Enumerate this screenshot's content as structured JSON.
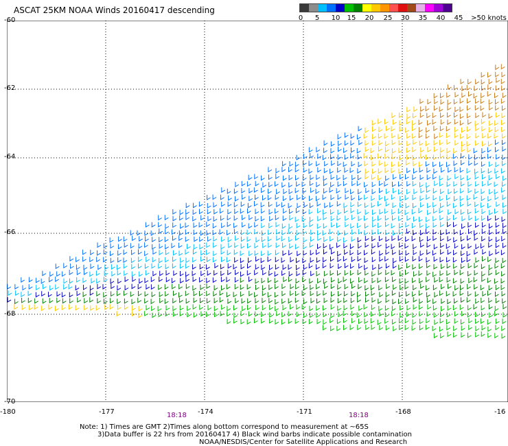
{
  "title": "ASCAT 25KM NOAA Winds 20160417 descending",
  "colorbar": {
    "colors": [
      "#3a3a3a",
      "#8c8c8c",
      "#00bfff",
      "#0070ff",
      "#0000c8",
      "#00c000",
      "#008000",
      "#ffff00",
      "#ffc800",
      "#ff9600",
      "#ff5050",
      "#e01010",
      "#a04a1a",
      "#e8b0e8",
      "#ff00ff",
      "#a000d8",
      "#500090"
    ],
    "labels": [
      "0",
      "5",
      "10",
      "15",
      "20",
      "25",
      "30",
      "35",
      "40",
      "45",
      ">50 knots"
    ]
  },
  "axes": {
    "lat_labels": [
      "-60",
      "-62",
      "-64",
      "-66",
      "-68",
      "-70"
    ],
    "lon_labels": [
      "-180",
      "-177",
      "-174",
      "-171",
      "-168",
      "-16"
    ]
  },
  "times": [
    "18:18",
    "18:18"
  ],
  "notes": [
    "Note: 1) Times are GMT 2)Times along bottom correspond to measurement at ~65S",
    "3)Data buffer is 22 hrs from 20160417 4) Black wind barbs indicate possible contamination",
    "NOAA/NESDIS/Center for Satellite Applications and Research"
  ]
}
